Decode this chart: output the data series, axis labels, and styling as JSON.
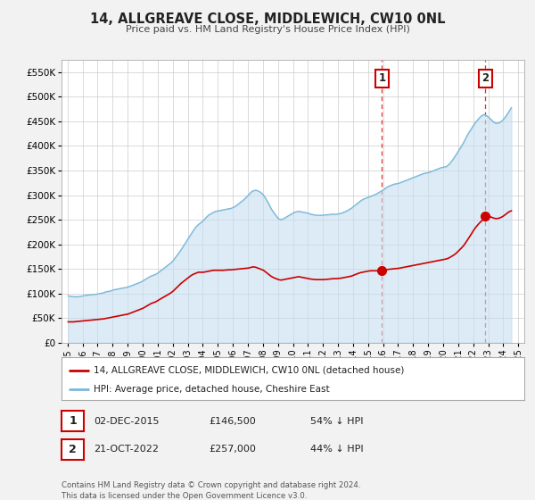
{
  "title": "14, ALLGREAVE CLOSE, MIDDLEWICH, CW10 0NL",
  "subtitle": "Price paid vs. HM Land Registry's House Price Index (HPI)",
  "ylim": [
    0,
    575000
  ],
  "yticks": [
    0,
    50000,
    100000,
    150000,
    200000,
    250000,
    300000,
    350000,
    400000,
    450000,
    500000,
    550000
  ],
  "ytick_labels": [
    "£0",
    "£50K",
    "£100K",
    "£150K",
    "£200K",
    "£250K",
    "£300K",
    "£350K",
    "£400K",
    "£450K",
    "£500K",
    "£550K"
  ],
  "xlim_start": 1994.6,
  "xlim_end": 2025.4,
  "background_color": "#f2f2f2",
  "plot_bg_color": "#ffffff",
  "grid_color": "#cccccc",
  "hpi_line_color": "#7ab8d9",
  "hpi_fill_color": "#c5dff0",
  "price_line_color": "#cc0000",
  "legend_label_price": "14, ALLGREAVE CLOSE, MIDDLEWICH, CW10 0NL (detached house)",
  "legend_label_hpi": "HPI: Average price, detached house, Cheshire East",
  "annotation1_date": 2015.92,
  "annotation1_price": 146500,
  "annotation1_label": "1",
  "annotation2_date": 2022.8,
  "annotation2_price": 257000,
  "annotation2_label": "2",
  "footer_text": "Contains HM Land Registry data © Crown copyright and database right 2024.\nThis data is licensed under the Open Government Licence v3.0.",
  "sale1_date_str": "02-DEC-2015",
  "sale1_price_str": "£146,500",
  "sale1_pct_str": "54% ↓ HPI",
  "sale2_date_str": "21-OCT-2022",
  "sale2_price_str": "£257,000",
  "sale2_pct_str": "44% ↓ HPI",
  "hpi_data": [
    [
      1995.04,
      95000
    ],
    [
      1995.21,
      94000
    ],
    [
      1995.38,
      93500
    ],
    [
      1995.54,
      93000
    ],
    [
      1995.71,
      93500
    ],
    [
      1995.88,
      94000
    ],
    [
      1996.04,
      95000
    ],
    [
      1996.21,
      96000
    ],
    [
      1996.38,
      96500
    ],
    [
      1996.54,
      97000
    ],
    [
      1996.71,
      97500
    ],
    [
      1996.88,
      98000
    ],
    [
      1997.04,
      99000
    ],
    [
      1997.21,
      100000
    ],
    [
      1997.38,
      101000
    ],
    [
      1997.54,
      103000
    ],
    [
      1997.71,
      104000
    ],
    [
      1997.88,
      105000
    ],
    [
      1998.04,
      107000
    ],
    [
      1998.21,
      108000
    ],
    [
      1998.38,
      109000
    ],
    [
      1998.54,
      110000
    ],
    [
      1998.71,
      111000
    ],
    [
      1998.88,
      112000
    ],
    [
      1999.04,
      113000
    ],
    [
      1999.21,
      115000
    ],
    [
      1999.38,
      117000
    ],
    [
      1999.54,
      119000
    ],
    [
      1999.71,
      121000
    ],
    [
      1999.88,
      123000
    ],
    [
      2000.04,
      126000
    ],
    [
      2000.21,
      129000
    ],
    [
      2000.38,
      132000
    ],
    [
      2000.54,
      135000
    ],
    [
      2000.71,
      137000
    ],
    [
      2000.88,
      139000
    ],
    [
      2001.04,
      142000
    ],
    [
      2001.21,
      146000
    ],
    [
      2001.38,
      150000
    ],
    [
      2001.54,
      154000
    ],
    [
      2001.71,
      158000
    ],
    [
      2001.88,
      162000
    ],
    [
      2002.04,
      167000
    ],
    [
      2002.21,
      174000
    ],
    [
      2002.38,
      181000
    ],
    [
      2002.54,
      188000
    ],
    [
      2002.71,
      196000
    ],
    [
      2002.88,
      204000
    ],
    [
      2003.04,
      212000
    ],
    [
      2003.21,
      220000
    ],
    [
      2003.38,
      228000
    ],
    [
      2003.54,
      235000
    ],
    [
      2003.71,
      240000
    ],
    [
      2003.88,
      244000
    ],
    [
      2004.04,
      248000
    ],
    [
      2004.21,
      254000
    ],
    [
      2004.38,
      259000
    ],
    [
      2004.54,
      262000
    ],
    [
      2004.71,
      265000
    ],
    [
      2004.88,
      267000
    ],
    [
      2005.04,
      268000
    ],
    [
      2005.21,
      269000
    ],
    [
      2005.38,
      270000
    ],
    [
      2005.54,
      271000
    ],
    [
      2005.71,
      272000
    ],
    [
      2005.88,
      273000
    ],
    [
      2006.04,
      275000
    ],
    [
      2006.21,
      278000
    ],
    [
      2006.38,
      282000
    ],
    [
      2006.54,
      286000
    ],
    [
      2006.71,
      290000
    ],
    [
      2006.88,
      295000
    ],
    [
      2007.04,
      300000
    ],
    [
      2007.21,
      306000
    ],
    [
      2007.38,
      309000
    ],
    [
      2007.54,
      310000
    ],
    [
      2007.71,
      308000
    ],
    [
      2007.88,
      305000
    ],
    [
      2008.04,
      300000
    ],
    [
      2008.21,
      292000
    ],
    [
      2008.38,
      283000
    ],
    [
      2008.54,
      273000
    ],
    [
      2008.71,
      265000
    ],
    [
      2008.88,
      258000
    ],
    [
      2009.04,
      252000
    ],
    [
      2009.21,
      250000
    ],
    [
      2009.38,
      252000
    ],
    [
      2009.54,
      255000
    ],
    [
      2009.71,
      258000
    ],
    [
      2009.88,
      261000
    ],
    [
      2010.04,
      264000
    ],
    [
      2010.21,
      266000
    ],
    [
      2010.38,
      267000
    ],
    [
      2010.54,
      266000
    ],
    [
      2010.71,
      265000
    ],
    [
      2010.88,
      264000
    ],
    [
      2011.04,
      263000
    ],
    [
      2011.21,
      261000
    ],
    [
      2011.38,
      260000
    ],
    [
      2011.54,
      259000
    ],
    [
      2011.71,
      259000
    ],
    [
      2011.88,
      259000
    ],
    [
      2012.04,
      259000
    ],
    [
      2012.21,
      260000
    ],
    [
      2012.38,
      260000
    ],
    [
      2012.54,
      261000
    ],
    [
      2012.71,
      261000
    ],
    [
      2012.88,
      261000
    ],
    [
      2013.04,
      262000
    ],
    [
      2013.21,
      263000
    ],
    [
      2013.38,
      265000
    ],
    [
      2013.54,
      267000
    ],
    [
      2013.71,
      270000
    ],
    [
      2013.88,
      273000
    ],
    [
      2014.04,
      277000
    ],
    [
      2014.21,
      281000
    ],
    [
      2014.38,
      285000
    ],
    [
      2014.54,
      289000
    ],
    [
      2014.71,
      292000
    ],
    [
      2014.88,
      294000
    ],
    [
      2015.04,
      296000
    ],
    [
      2015.21,
      298000
    ],
    [
      2015.38,
      300000
    ],
    [
      2015.54,
      302000
    ],
    [
      2015.71,
      305000
    ],
    [
      2015.88,
      308000
    ],
    [
      2016.04,
      311000
    ],
    [
      2016.21,
      315000
    ],
    [
      2016.38,
      318000
    ],
    [
      2016.54,
      320000
    ],
    [
      2016.71,
      322000
    ],
    [
      2016.88,
      323000
    ],
    [
      2017.04,
      324000
    ],
    [
      2017.21,
      326000
    ],
    [
      2017.38,
      328000
    ],
    [
      2017.54,
      330000
    ],
    [
      2017.71,
      332000
    ],
    [
      2017.88,
      334000
    ],
    [
      2018.04,
      336000
    ],
    [
      2018.21,
      338000
    ],
    [
      2018.38,
      340000
    ],
    [
      2018.54,
      342000
    ],
    [
      2018.71,
      344000
    ],
    [
      2018.88,
      345000
    ],
    [
      2019.04,
      346000
    ],
    [
      2019.21,
      348000
    ],
    [
      2019.38,
      350000
    ],
    [
      2019.54,
      352000
    ],
    [
      2019.71,
      354000
    ],
    [
      2019.88,
      356000
    ],
    [
      2020.04,
      357000
    ],
    [
      2020.21,
      358000
    ],
    [
      2020.38,
      362000
    ],
    [
      2020.54,
      368000
    ],
    [
      2020.71,
      375000
    ],
    [
      2020.88,
      383000
    ],
    [
      2021.04,
      391000
    ],
    [
      2021.21,
      399000
    ],
    [
      2021.38,
      408000
    ],
    [
      2021.54,
      418000
    ],
    [
      2021.71,
      427000
    ],
    [
      2021.88,
      435000
    ],
    [
      2022.04,
      443000
    ],
    [
      2022.21,
      450000
    ],
    [
      2022.38,
      456000
    ],
    [
      2022.54,
      461000
    ],
    [
      2022.71,
      464000
    ],
    [
      2022.88,
      462000
    ],
    [
      2023.04,
      458000
    ],
    [
      2023.21,
      453000
    ],
    [
      2023.38,
      448000
    ],
    [
      2023.54,
      446000
    ],
    [
      2023.71,
      447000
    ],
    [
      2023.88,
      450000
    ],
    [
      2024.04,
      455000
    ],
    [
      2024.21,
      462000
    ],
    [
      2024.38,
      470000
    ],
    [
      2024.54,
      478000
    ]
  ],
  "price_data": [
    [
      1995.04,
      42000
    ],
    [
      1995.21,
      42000
    ],
    [
      1995.38,
      42000
    ],
    [
      1995.54,
      42500
    ],
    [
      1995.71,
      43000
    ],
    [
      1995.88,
      43500
    ],
    [
      1996.04,
      44000
    ],
    [
      1996.21,
      44500
    ],
    [
      1996.38,
      45000
    ],
    [
      1996.54,
      45500
    ],
    [
      1996.71,
      46000
    ],
    [
      1996.88,
      46500
    ],
    [
      1997.04,
      47000
    ],
    [
      1997.21,
      47500
    ],
    [
      1997.38,
      48000
    ],
    [
      1997.54,
      49000
    ],
    [
      1997.71,
      50000
    ],
    [
      1997.88,
      51000
    ],
    [
      1998.04,
      52000
    ],
    [
      1998.21,
      53000
    ],
    [
      1998.38,
      54000
    ],
    [
      1998.54,
      55000
    ],
    [
      1998.71,
      56000
    ],
    [
      1998.88,
      57000
    ],
    [
      1999.04,
      58000
    ],
    [
      1999.21,
      60000
    ],
    [
      1999.38,
      62000
    ],
    [
      1999.54,
      64000
    ],
    [
      1999.71,
      66000
    ],
    [
      1999.88,
      68000
    ],
    [
      2000.04,
      70000
    ],
    [
      2000.21,
      73000
    ],
    [
      2000.38,
      76000
    ],
    [
      2000.54,
      79000
    ],
    [
      2000.71,
      81000
    ],
    [
      2000.88,
      83000
    ],
    [
      2001.04,
      86000
    ],
    [
      2001.21,
      89000
    ],
    [
      2001.38,
      92000
    ],
    [
      2001.54,
      95000
    ],
    [
      2001.71,
      98000
    ],
    [
      2001.88,
      101000
    ],
    [
      2002.04,
      105000
    ],
    [
      2002.21,
      110000
    ],
    [
      2002.38,
      115000
    ],
    [
      2002.54,
      120000
    ],
    [
      2002.71,
      124000
    ],
    [
      2002.88,
      128000
    ],
    [
      2003.04,
      132000
    ],
    [
      2003.21,
      136000
    ],
    [
      2003.38,
      139000
    ],
    [
      2003.54,
      141000
    ],
    [
      2003.71,
      143000
    ],
    [
      2003.88,
      143000
    ],
    [
      2004.04,
      143000
    ],
    [
      2004.21,
      144000
    ],
    [
      2004.38,
      145000
    ],
    [
      2004.54,
      146000
    ],
    [
      2004.71,
      147000
    ],
    [
      2004.88,
      147000
    ],
    [
      2005.04,
      147000
    ],
    [
      2005.21,
      147000
    ],
    [
      2005.38,
      147000
    ],
    [
      2005.54,
      147500
    ],
    [
      2005.71,
      148000
    ],
    [
      2005.88,
      148000
    ],
    [
      2006.04,
      148500
    ],
    [
      2006.21,
      149000
    ],
    [
      2006.38,
      149500
    ],
    [
      2006.54,
      150000
    ],
    [
      2006.71,
      150500
    ],
    [
      2006.88,
      151000
    ],
    [
      2007.04,
      151500
    ],
    [
      2007.21,
      153000
    ],
    [
      2007.38,
      154000
    ],
    [
      2007.54,
      153000
    ],
    [
      2007.71,
      151000
    ],
    [
      2007.88,
      149000
    ],
    [
      2008.04,
      147000
    ],
    [
      2008.21,
      143000
    ],
    [
      2008.38,
      139000
    ],
    [
      2008.54,
      135000
    ],
    [
      2008.71,
      132000
    ],
    [
      2008.88,
      130000
    ],
    [
      2009.04,
      128000
    ],
    [
      2009.21,
      127000
    ],
    [
      2009.38,
      128000
    ],
    [
      2009.54,
      129000
    ],
    [
      2009.71,
      130000
    ],
    [
      2009.88,
      131000
    ],
    [
      2010.04,
      132000
    ],
    [
      2010.21,
      133000
    ],
    [
      2010.38,
      134000
    ],
    [
      2010.54,
      133000
    ],
    [
      2010.71,
      132000
    ],
    [
      2010.88,
      131000
    ],
    [
      2011.04,
      130000
    ],
    [
      2011.21,
      129000
    ],
    [
      2011.38,
      128500
    ],
    [
      2011.54,
      128000
    ],
    [
      2011.71,
      128000
    ],
    [
      2011.88,
      128000
    ],
    [
      2012.04,
      128000
    ],
    [
      2012.21,
      128500
    ],
    [
      2012.38,
      129000
    ],
    [
      2012.54,
      129500
    ],
    [
      2012.71,
      130000
    ],
    [
      2012.88,
      130000
    ],
    [
      2013.04,
      130500
    ],
    [
      2013.21,
      131000
    ],
    [
      2013.38,
      132000
    ],
    [
      2013.54,
      133000
    ],
    [
      2013.71,
      134000
    ],
    [
      2013.88,
      135000
    ],
    [
      2014.04,
      137000
    ],
    [
      2014.21,
      139000
    ],
    [
      2014.38,
      141000
    ],
    [
      2014.54,
      142500
    ],
    [
      2014.71,
      143500
    ],
    [
      2014.88,
      144500
    ],
    [
      2015.04,
      145500
    ],
    [
      2015.21,
      146000
    ],
    [
      2015.38,
      146000
    ],
    [
      2015.54,
      146000
    ],
    [
      2015.71,
      146000
    ],
    [
      2015.88,
      146000
    ],
    [
      2015.92,
      146500
    ],
    [
      2016.04,
      147000
    ],
    [
      2016.21,
      148000
    ],
    [
      2016.38,
      149000
    ],
    [
      2016.54,
      149500
    ],
    [
      2016.71,
      150000
    ],
    [
      2016.88,
      150500
    ],
    [
      2017.04,
      151000
    ],
    [
      2017.21,
      152000
    ],
    [
      2017.38,
      153000
    ],
    [
      2017.54,
      154000
    ],
    [
      2017.71,
      155000
    ],
    [
      2017.88,
      156000
    ],
    [
      2018.04,
      157000
    ],
    [
      2018.21,
      158000
    ],
    [
      2018.38,
      159000
    ],
    [
      2018.54,
      160000
    ],
    [
      2018.71,
      161000
    ],
    [
      2018.88,
      162000
    ],
    [
      2019.04,
      163000
    ],
    [
      2019.21,
      164000
    ],
    [
      2019.38,
      165000
    ],
    [
      2019.54,
      166000
    ],
    [
      2019.71,
      167000
    ],
    [
      2019.88,
      168000
    ],
    [
      2020.04,
      169000
    ],
    [
      2020.21,
      170000
    ],
    [
      2020.38,
      172000
    ],
    [
      2020.54,
      175000
    ],
    [
      2020.71,
      178000
    ],
    [
      2020.88,
      182000
    ],
    [
      2021.04,
      187000
    ],
    [
      2021.21,
      192000
    ],
    [
      2021.38,
      198000
    ],
    [
      2021.54,
      205000
    ],
    [
      2021.71,
      213000
    ],
    [
      2021.88,
      221000
    ],
    [
      2022.04,
      229000
    ],
    [
      2022.21,
      236000
    ],
    [
      2022.38,
      242000
    ],
    [
      2022.54,
      247000
    ],
    [
      2022.71,
      251000
    ],
    [
      2022.8,
      257000
    ],
    [
      2022.88,
      258000
    ],
    [
      2023.04,
      257000
    ],
    [
      2023.21,
      255000
    ],
    [
      2023.38,
      253000
    ],
    [
      2023.54,
      252000
    ],
    [
      2023.71,
      253000
    ],
    [
      2023.88,
      255000
    ],
    [
      2024.04,
      258000
    ],
    [
      2024.21,
      262000
    ],
    [
      2024.38,
      266000
    ],
    [
      2024.54,
      268000
    ]
  ]
}
